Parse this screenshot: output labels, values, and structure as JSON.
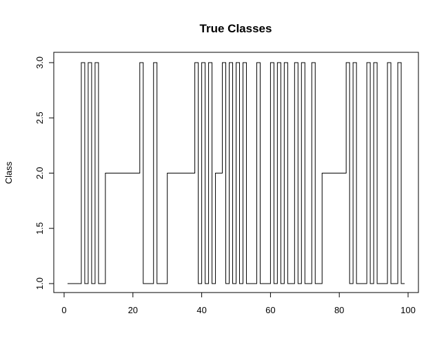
{
  "chart_data": {
    "type": "line",
    "step": true,
    "title": "True Classes",
    "xlabel": "",
    "ylabel": "Class",
    "xlim": [
      0,
      100
    ],
    "ylim": [
      1.0,
      3.0
    ],
    "xticks": [
      0,
      20,
      40,
      60,
      80,
      100
    ],
    "xtick_labels": [
      "0",
      "20",
      "40",
      "60",
      "80",
      "100"
    ],
    "yticks": [
      1.0,
      1.5,
      2.0,
      2.5,
      3.0
    ],
    "ytick_labels": [
      "1.0",
      "1.5",
      "2.0",
      "2.5",
      "3.0"
    ],
    "grid": false,
    "line_color": "#000000",
    "x": [
      1,
      2,
      3,
      4,
      5,
      6,
      7,
      8,
      9,
      10,
      11,
      12,
      13,
      14,
      15,
      16,
      17,
      18,
      19,
      20,
      21,
      22,
      23,
      24,
      25,
      26,
      27,
      28,
      29,
      30,
      31,
      32,
      33,
      34,
      35,
      36,
      37,
      38,
      39,
      40,
      41,
      42,
      43,
      44,
      45,
      46,
      47,
      48,
      49,
      50,
      51,
      52,
      53,
      54,
      55,
      56,
      57,
      58,
      59,
      60,
      61,
      62,
      63,
      64,
      65,
      66,
      67,
      68,
      69,
      70,
      71,
      72,
      73,
      74,
      75,
      76,
      77,
      78,
      79,
      80,
      81,
      82,
      83,
      84,
      85,
      86,
      87,
      88,
      89,
      90,
      91,
      92,
      93,
      94,
      95,
      96,
      97,
      98,
      99
    ],
    "values": [
      1,
      1,
      1,
      1,
      3,
      1,
      3,
      1,
      3,
      1,
      1,
      2,
      2,
      2,
      2,
      2,
      2,
      2,
      2,
      2,
      2,
      3,
      1,
      1,
      1,
      3,
      1,
      1,
      1,
      2,
      2,
      2,
      2,
      2,
      2,
      2,
      2,
      3,
      1,
      3,
      1,
      3,
      1,
      2,
      2,
      3,
      1,
      3,
      1,
      3,
      1,
      3,
      1,
      1,
      1,
      3,
      1,
      1,
      1,
      3,
      1,
      3,
      1,
      3,
      1,
      1,
      3,
      1,
      3,
      1,
      1,
      3,
      1,
      1,
      2,
      2,
      2,
      2,
      2,
      2,
      2,
      3,
      1,
      3,
      1,
      1,
      1,
      3,
      1,
      3,
      1,
      1,
      1,
      3,
      1,
      1,
      3,
      1,
      1
    ]
  }
}
